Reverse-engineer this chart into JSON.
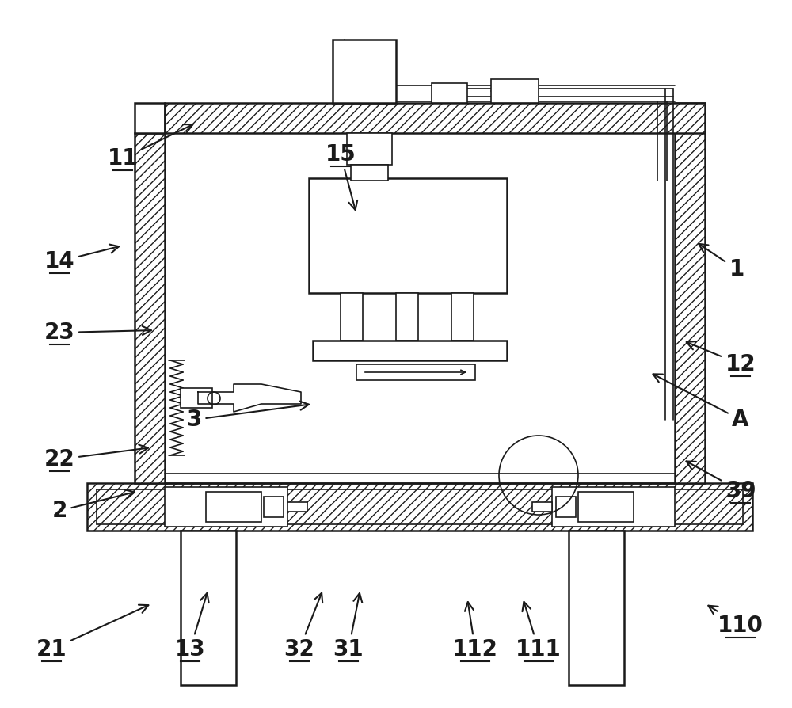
{
  "bg_color": "#ffffff",
  "line_color": "#1a1a1a",
  "figsize": [
    10.0,
    8.94
  ],
  "dpi": 100,
  "label_fontsize": 20,
  "labels_info": [
    [
      "21",
      65,
      820,
      192,
      762,
      true
    ],
    [
      "13",
      240,
      820,
      263,
      744,
      true
    ],
    [
      "32",
      378,
      820,
      408,
      744,
      true
    ],
    [
      "31",
      440,
      820,
      455,
      744,
      true
    ],
    [
      "112",
      600,
      820,
      590,
      755,
      true
    ],
    [
      "111",
      680,
      820,
      660,
      755,
      true
    ],
    [
      "110",
      935,
      790,
      890,
      762,
      true
    ],
    [
      "2",
      75,
      645,
      175,
      620,
      false
    ],
    [
      "22",
      75,
      580,
      192,
      565,
      true
    ],
    [
      "3",
      245,
      530,
      395,
      510,
      false
    ],
    [
      "39",
      935,
      620,
      862,
      580,
      true
    ],
    [
      "A",
      935,
      530,
      820,
      470,
      false
    ],
    [
      "12",
      935,
      460,
      862,
      430,
      true
    ],
    [
      "23",
      75,
      420,
      196,
      417,
      true
    ],
    [
      "14",
      75,
      330,
      155,
      310,
      true
    ],
    [
      "1",
      930,
      340,
      878,
      305,
      false
    ],
    [
      "11",
      155,
      200,
      248,
      155,
      true
    ],
    [
      "15",
      430,
      195,
      450,
      270,
      true
    ]
  ]
}
